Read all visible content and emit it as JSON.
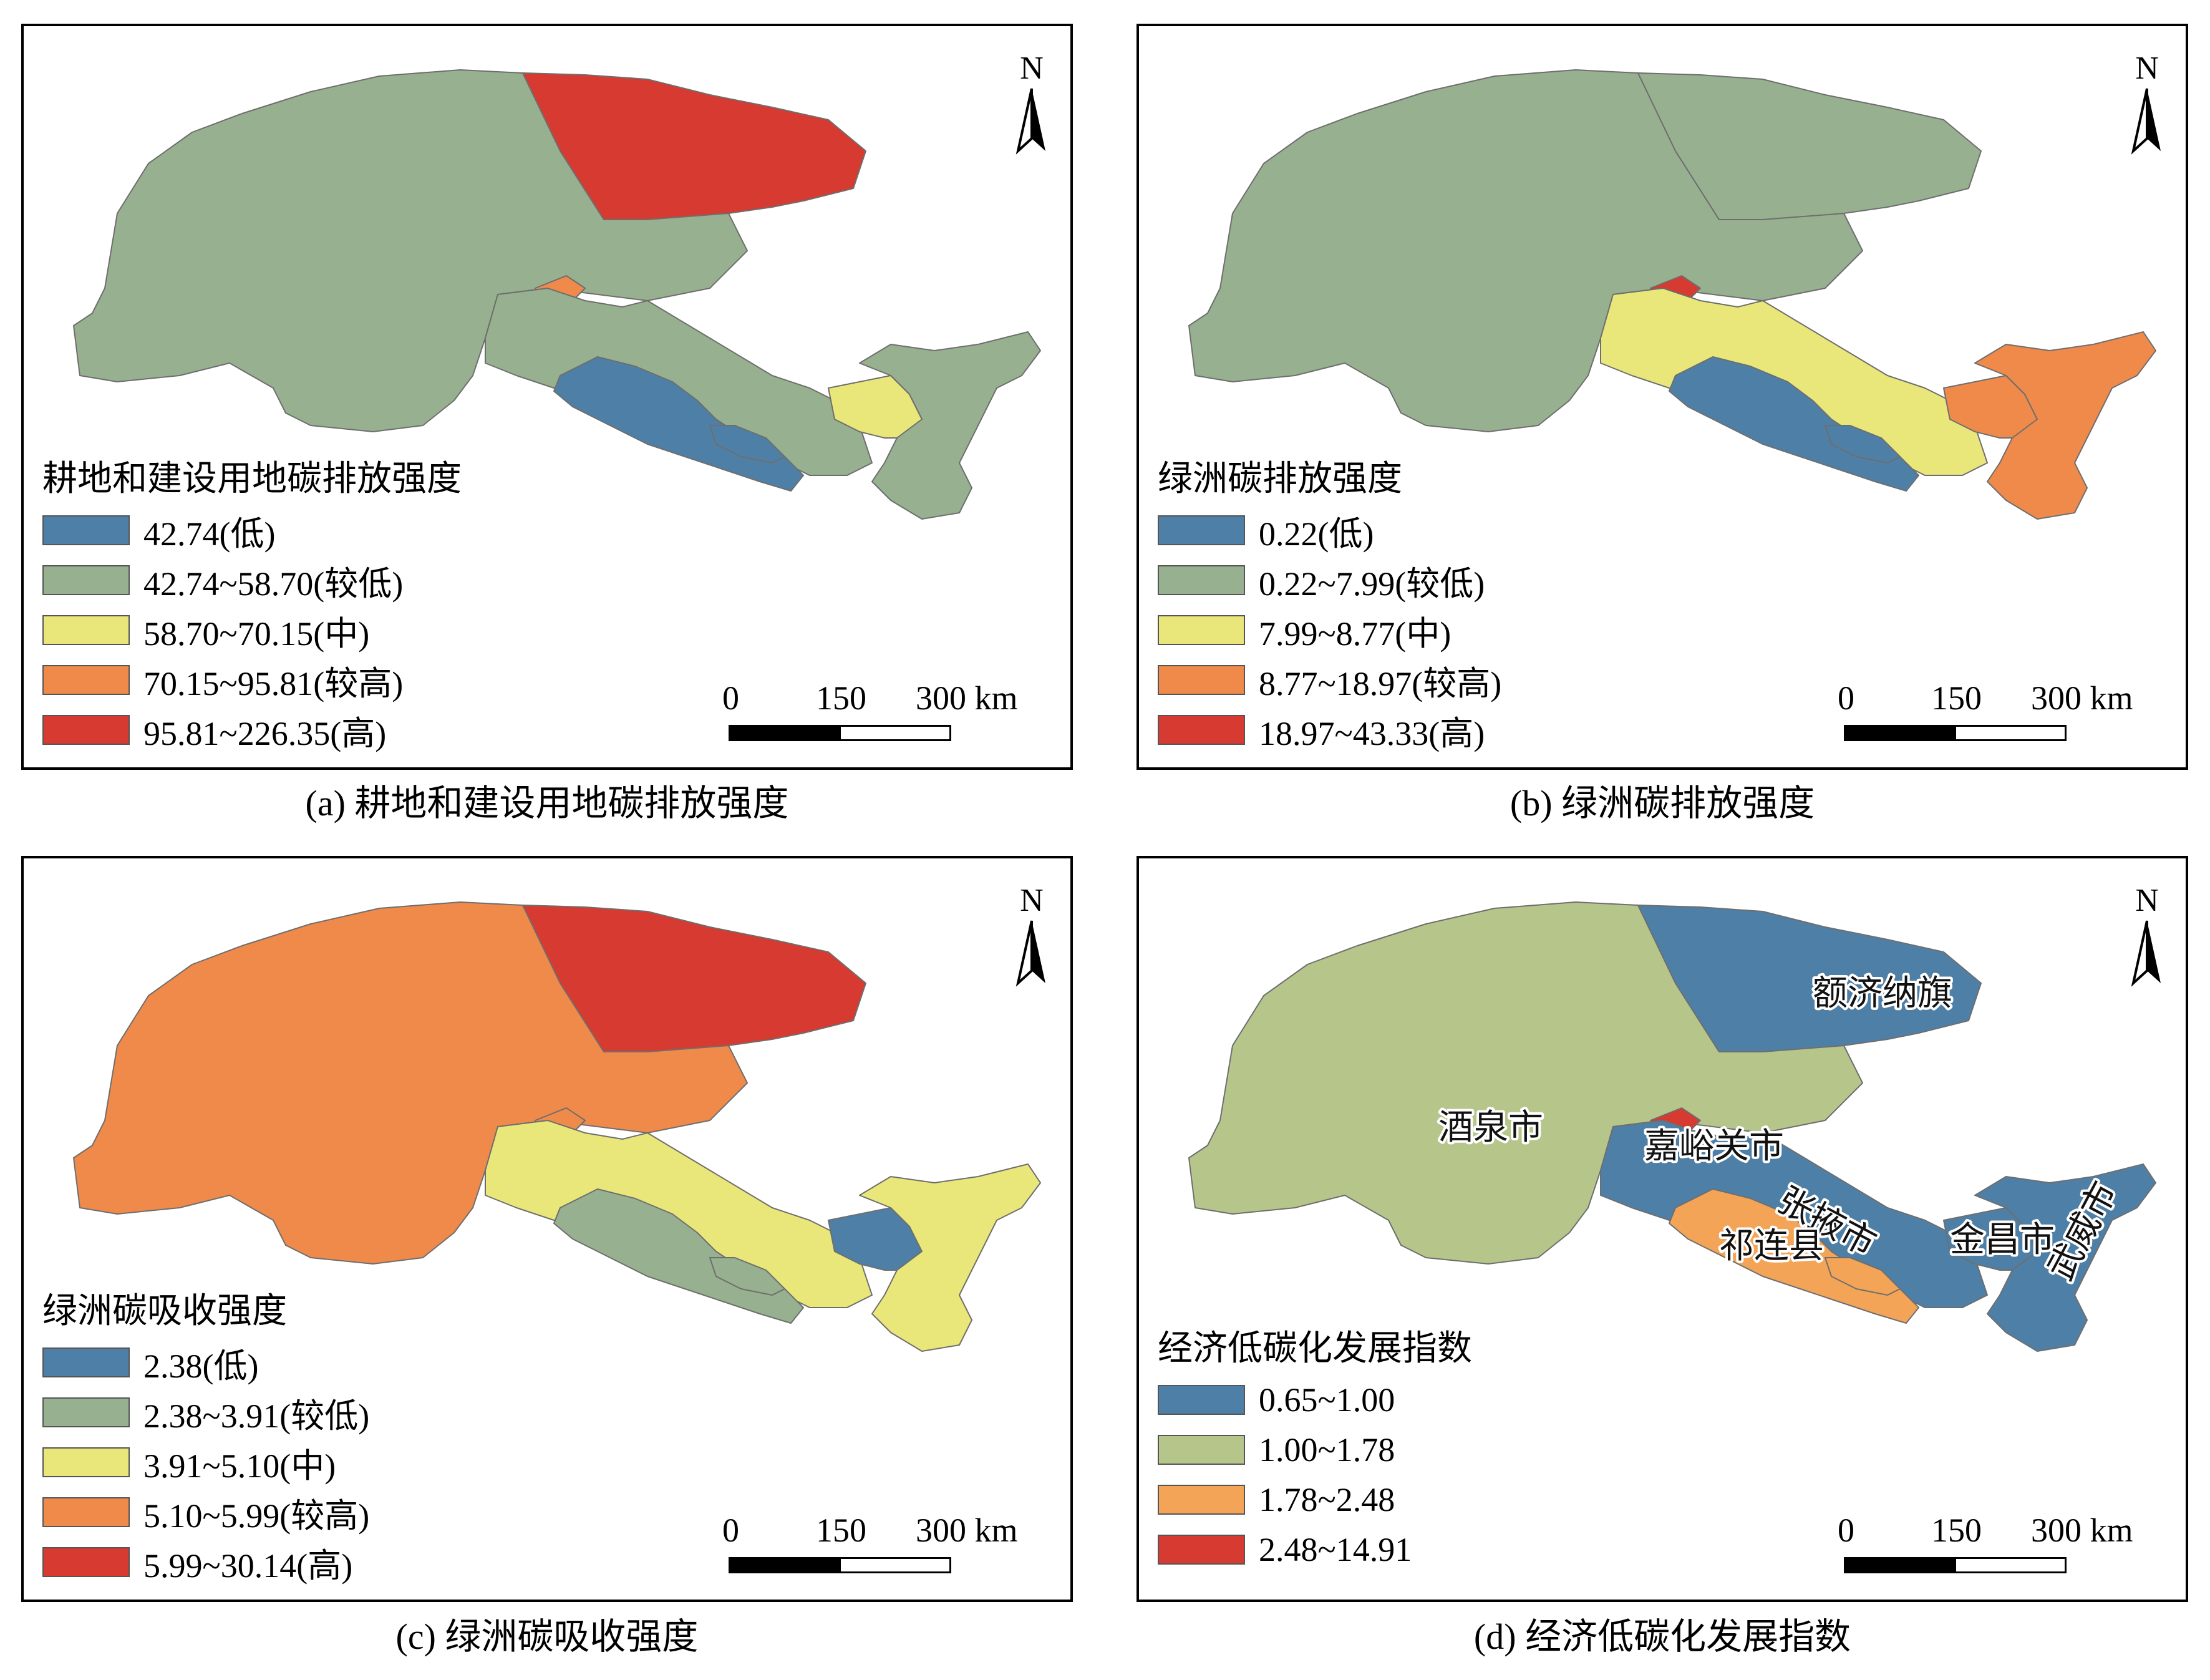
{
  "north_label": "N",
  "scale": {
    "ticks": [
      "0",
      "150",
      "300 km"
    ]
  },
  "colors": {
    "blue": "#4e7fa6",
    "grey_green": "#97b08f",
    "sage": "#b6c68a",
    "yellow": "#e9e77a",
    "orange": "#ef8a4a",
    "light_orange": "#f4a456",
    "red": "#d63a30"
  },
  "panels": [
    {
      "id": "a",
      "legend_title": "耕地和建设用地碳排放强度",
      "legend": [
        {
          "label": "42.74(低)",
          "color": "#4e7fa6"
        },
        {
          "label": "42.74~58.70(较低)",
          "color": "#97b08f"
        },
        {
          "label": "58.70~70.15(中)",
          "color": "#e9e77a"
        },
        {
          "label": "70.15~95.81(较高)",
          "color": "#ef8a4a"
        },
        {
          "label": "95.81~226.35(高)",
          "color": "#d63a30"
        }
      ],
      "caption_prefix": "(a) ",
      "caption_text": "耕地和建设用地碳排放强度",
      "region_colors": {
        "jiuquan": "#97b08f",
        "ejina": "#d63a30",
        "jiayuguan": "#ef8a4a",
        "zhangye": "#97b08f",
        "sunan": "#4e7fa6",
        "qilian": "#4e7fa6",
        "jinchang": "#e9e77a",
        "wuwei": "#97b08f"
      }
    },
    {
      "id": "b",
      "legend_title": "绿洲碳排放强度",
      "legend": [
        {
          "label": "0.22(低)",
          "color": "#4e7fa6"
        },
        {
          "label": "0.22~7.99(较低)",
          "color": "#97b08f"
        },
        {
          "label": "7.99~8.77(中)",
          "color": "#e9e77a"
        },
        {
          "label": "8.77~18.97(较高)",
          "color": "#ef8a4a"
        },
        {
          "label": "18.97~43.33(高)",
          "color": "#d63a30"
        }
      ],
      "caption_prefix": "(b) ",
      "caption_text": "绿洲碳排放强度",
      "region_colors": {
        "jiuquan": "#97b08f",
        "ejina": "#97b08f",
        "jiayuguan": "#d63a30",
        "zhangye": "#e9e77a",
        "sunan": "#4e7fa6",
        "qilian": "#4e7fa6",
        "jinchang": "#ef8a4a",
        "wuwei": "#ef8a4a"
      }
    },
    {
      "id": "c",
      "legend_title": "绿洲碳吸收强度",
      "legend": [
        {
          "label": "2.38(低)",
          "color": "#4e7fa6"
        },
        {
          "label": "2.38~3.91(较低)",
          "color": "#97b08f"
        },
        {
          "label": "3.91~5.10(中)",
          "color": "#e9e77a"
        },
        {
          "label": "5.10~5.99(较高)",
          "color": "#ef8a4a"
        },
        {
          "label": "5.99~30.14(高)",
          "color": "#d63a30"
        }
      ],
      "caption_prefix": "(c) ",
      "caption_text": "绿洲碳吸收强度",
      "region_colors": {
        "jiuquan": "#ef8a4a",
        "ejina": "#d63a30",
        "jiayuguan": "#ef8a4a",
        "zhangye": "#e9e77a",
        "sunan": "#97b08f",
        "qilian": "#97b08f",
        "jinchang": "#4e7fa6",
        "wuwei": "#e9e77a"
      }
    },
    {
      "id": "d",
      "legend_title": "经济低碳化发展指数",
      "legend": [
        {
          "label": "0.65~1.00",
          "color": "#4e7fa6"
        },
        {
          "label": "1.00~1.78",
          "color": "#b6c68a"
        },
        {
          "label": "1.78~2.48",
          "color": "#f4a456"
        },
        {
          "label": "2.48~14.91",
          "color": "#d63a30"
        }
      ],
      "caption_prefix": "(d) ",
      "caption_text": "经济低碳化发展指数",
      "region_colors": {
        "jiuquan": "#b6c68a",
        "ejina": "#4e7fa6",
        "jiayuguan": "#d63a30",
        "zhangye": "#4e7fa6",
        "sunan": "#f4a456",
        "qilian": "#f4a456",
        "jinchang": "#4e7fa6",
        "wuwei": "#4e7fa6"
      },
      "place_labels": {
        "ejina": "额济纳旗",
        "jiuquan": "酒泉市",
        "jiayuguan": "嘉峪关市",
        "zhangye": "张掖市",
        "qilian": "祁连县",
        "jinchang": "金昌市",
        "wuwei": "武威市"
      }
    }
  ]
}
